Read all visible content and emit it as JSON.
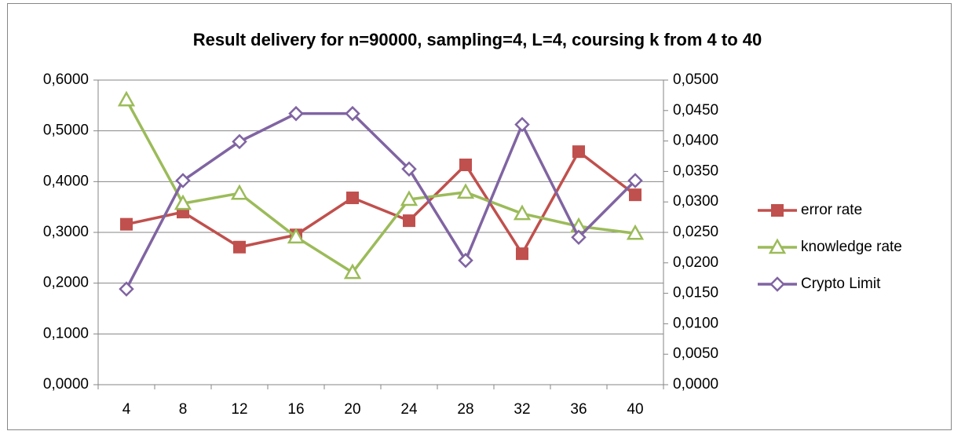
{
  "chart_data": {
    "type": "line",
    "title": "Result delivery for n=90000, sampling=4, L=4, coursing k from 4 to 40",
    "categories": [
      "4",
      "8",
      "12",
      "16",
      "20",
      "24",
      "28",
      "32",
      "36",
      "40"
    ],
    "series": [
      {
        "name": "error rate",
        "color": "#c0504d",
        "marker": "square",
        "axis": "y",
        "values": [
          0.316,
          0.34,
          0.271,
          0.295,
          0.368,
          0.323,
          0.433,
          0.258,
          0.459,
          0.374
        ]
      },
      {
        "name": "knowledge rate",
        "color": "#9bbb59",
        "marker": "triangle",
        "axis": "y",
        "values": [
          0.561,
          0.357,
          0.377,
          0.291,
          0.221,
          0.365,
          0.379,
          0.337,
          0.312,
          0.298
        ]
      },
      {
        "name": "Crypto Limit",
        "color": "#8064a2",
        "marker": "diamond",
        "axis": "y2",
        "values": [
          0.0157,
          0.0335,
          0.0399,
          0.0445,
          0.0445,
          0.0354,
          0.0204,
          0.0427,
          0.0242,
          0.0335
        ]
      }
    ],
    "ylim": [
      0,
      0.6
    ],
    "yticks": [
      {
        "value": 0,
        "label": "0,0000"
      },
      {
        "value": 0.1,
        "label": "0,1000"
      },
      {
        "value": 0.2,
        "label": "0,2000"
      },
      {
        "value": 0.3,
        "label": "0,3000"
      },
      {
        "value": 0.4,
        "label": "0,4000"
      },
      {
        "value": 0.5,
        "label": "0,5000"
      },
      {
        "value": 0.6,
        "label": "0,6000"
      }
    ],
    "y2lim": [
      0,
      0.05
    ],
    "y2ticks": [
      {
        "value": 0,
        "label": "0,0000"
      },
      {
        "value": 0.005,
        "label": "0,0050"
      },
      {
        "value": 0.01,
        "label": "0,0100"
      },
      {
        "value": 0.015,
        "label": "0,0150"
      },
      {
        "value": 0.02,
        "label": "0,0200"
      },
      {
        "value": 0.025,
        "label": "0,0250"
      },
      {
        "value": 0.03,
        "label": "0,0300"
      },
      {
        "value": 0.035,
        "label": "0,0350"
      },
      {
        "value": 0.04,
        "label": "0,0400"
      },
      {
        "value": 0.045,
        "label": "0,0450"
      },
      {
        "value": 0.05,
        "label": "0,0500"
      }
    ],
    "grid": true,
    "legend": "right"
  }
}
